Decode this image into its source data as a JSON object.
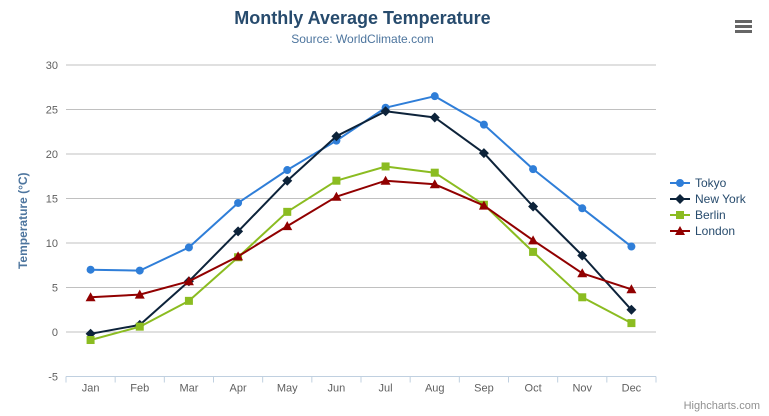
{
  "chart": {
    "title": "Monthly Average Temperature",
    "subtitle": "Source: WorldClimate.com",
    "credit": "Highcharts.com",
    "export_icon": "hamburger-menu-icon"
  },
  "chart_data": {
    "type": "line",
    "title": "Monthly Average Temperature",
    "subtitle": "Source: WorldClimate.com",
    "xlabel": "",
    "ylabel": "Temperature (°C)",
    "categories": [
      "Jan",
      "Feb",
      "Mar",
      "Apr",
      "May",
      "Jun",
      "Jul",
      "Aug",
      "Sep",
      "Oct",
      "Nov",
      "Dec"
    ],
    "ylim": [
      -5,
      30
    ],
    "ytick_step": 5,
    "grid": true,
    "legend_position": "right",
    "series": [
      {
        "name": "Tokyo",
        "color": "#2f7ed8",
        "marker": "circle",
        "values": [
          7.0,
          6.9,
          9.5,
          14.5,
          18.2,
          21.5,
          25.2,
          26.5,
          23.3,
          18.3,
          13.9,
          9.6
        ]
      },
      {
        "name": "New York",
        "color": "#0d233a",
        "marker": "diamond",
        "values": [
          -0.2,
          0.8,
          5.7,
          11.3,
          17.0,
          22.0,
          24.8,
          24.1,
          20.1,
          14.1,
          8.6,
          2.5
        ]
      },
      {
        "name": "Berlin",
        "color": "#8bbc21",
        "marker": "square",
        "values": [
          -0.9,
          0.6,
          3.5,
          8.4,
          13.5,
          17.0,
          18.6,
          17.9,
          14.3,
          9.0,
          3.9,
          1.0
        ]
      },
      {
        "name": "London",
        "color": "#910000",
        "marker": "triangle",
        "values": [
          3.9,
          4.2,
          5.7,
          8.5,
          11.9,
          15.2,
          17.0,
          16.6,
          14.2,
          10.3,
          6.6,
          4.8
        ]
      }
    ]
  },
  "colors": {
    "title": "#274b6d",
    "subtitle": "#4d759e",
    "axis_title": "#4d759e",
    "axis_label": "#606060",
    "grid_line": "#c0c0c0",
    "axis_line": "#c0d0e0",
    "legend_text": "#274b6d",
    "credit_text": "#909090",
    "background": "#ffffff"
  }
}
